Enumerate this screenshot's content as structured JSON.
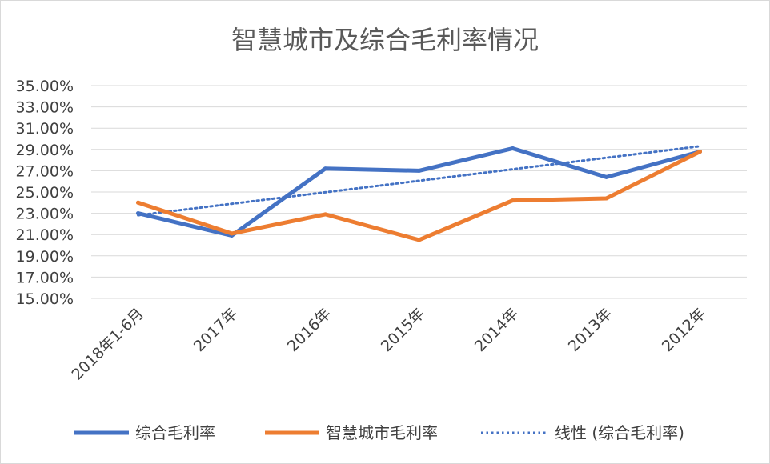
{
  "chart_data": {
    "type": "line",
    "title": "智慧城市及综合毛利率情况",
    "categories": [
      "2018年1-6月",
      "2017年",
      "2016年",
      "2015年",
      "2014年",
      "2013年",
      "2012年"
    ],
    "series": [
      {
        "name": "综合毛利率",
        "values": [
          23.0,
          20.9,
          27.2,
          27.0,
          29.1,
          26.4,
          28.8
        ],
        "color": "#4472c4",
        "style": "solid"
      },
      {
        "name": "智慧城市毛利率",
        "values": [
          24.0,
          21.1,
          22.9,
          20.5,
          24.2,
          24.4,
          28.8
        ],
        "color": "#ed7d31",
        "style": "solid"
      }
    ],
    "trendline": {
      "name": "线性 (综合毛利率)",
      "of_series": "综合毛利率",
      "type": "linear",
      "color": "#4472c4",
      "style": "dotted"
    },
    "ylim": [
      15.0,
      35.0
    ],
    "yticks": [
      "15.00%",
      "17.00%",
      "19.00%",
      "21.00%",
      "23.00%",
      "25.00%",
      "27.00%",
      "29.00%",
      "31.00%",
      "33.00%",
      "35.00%"
    ],
    "grid": true,
    "legend": "bottom"
  }
}
